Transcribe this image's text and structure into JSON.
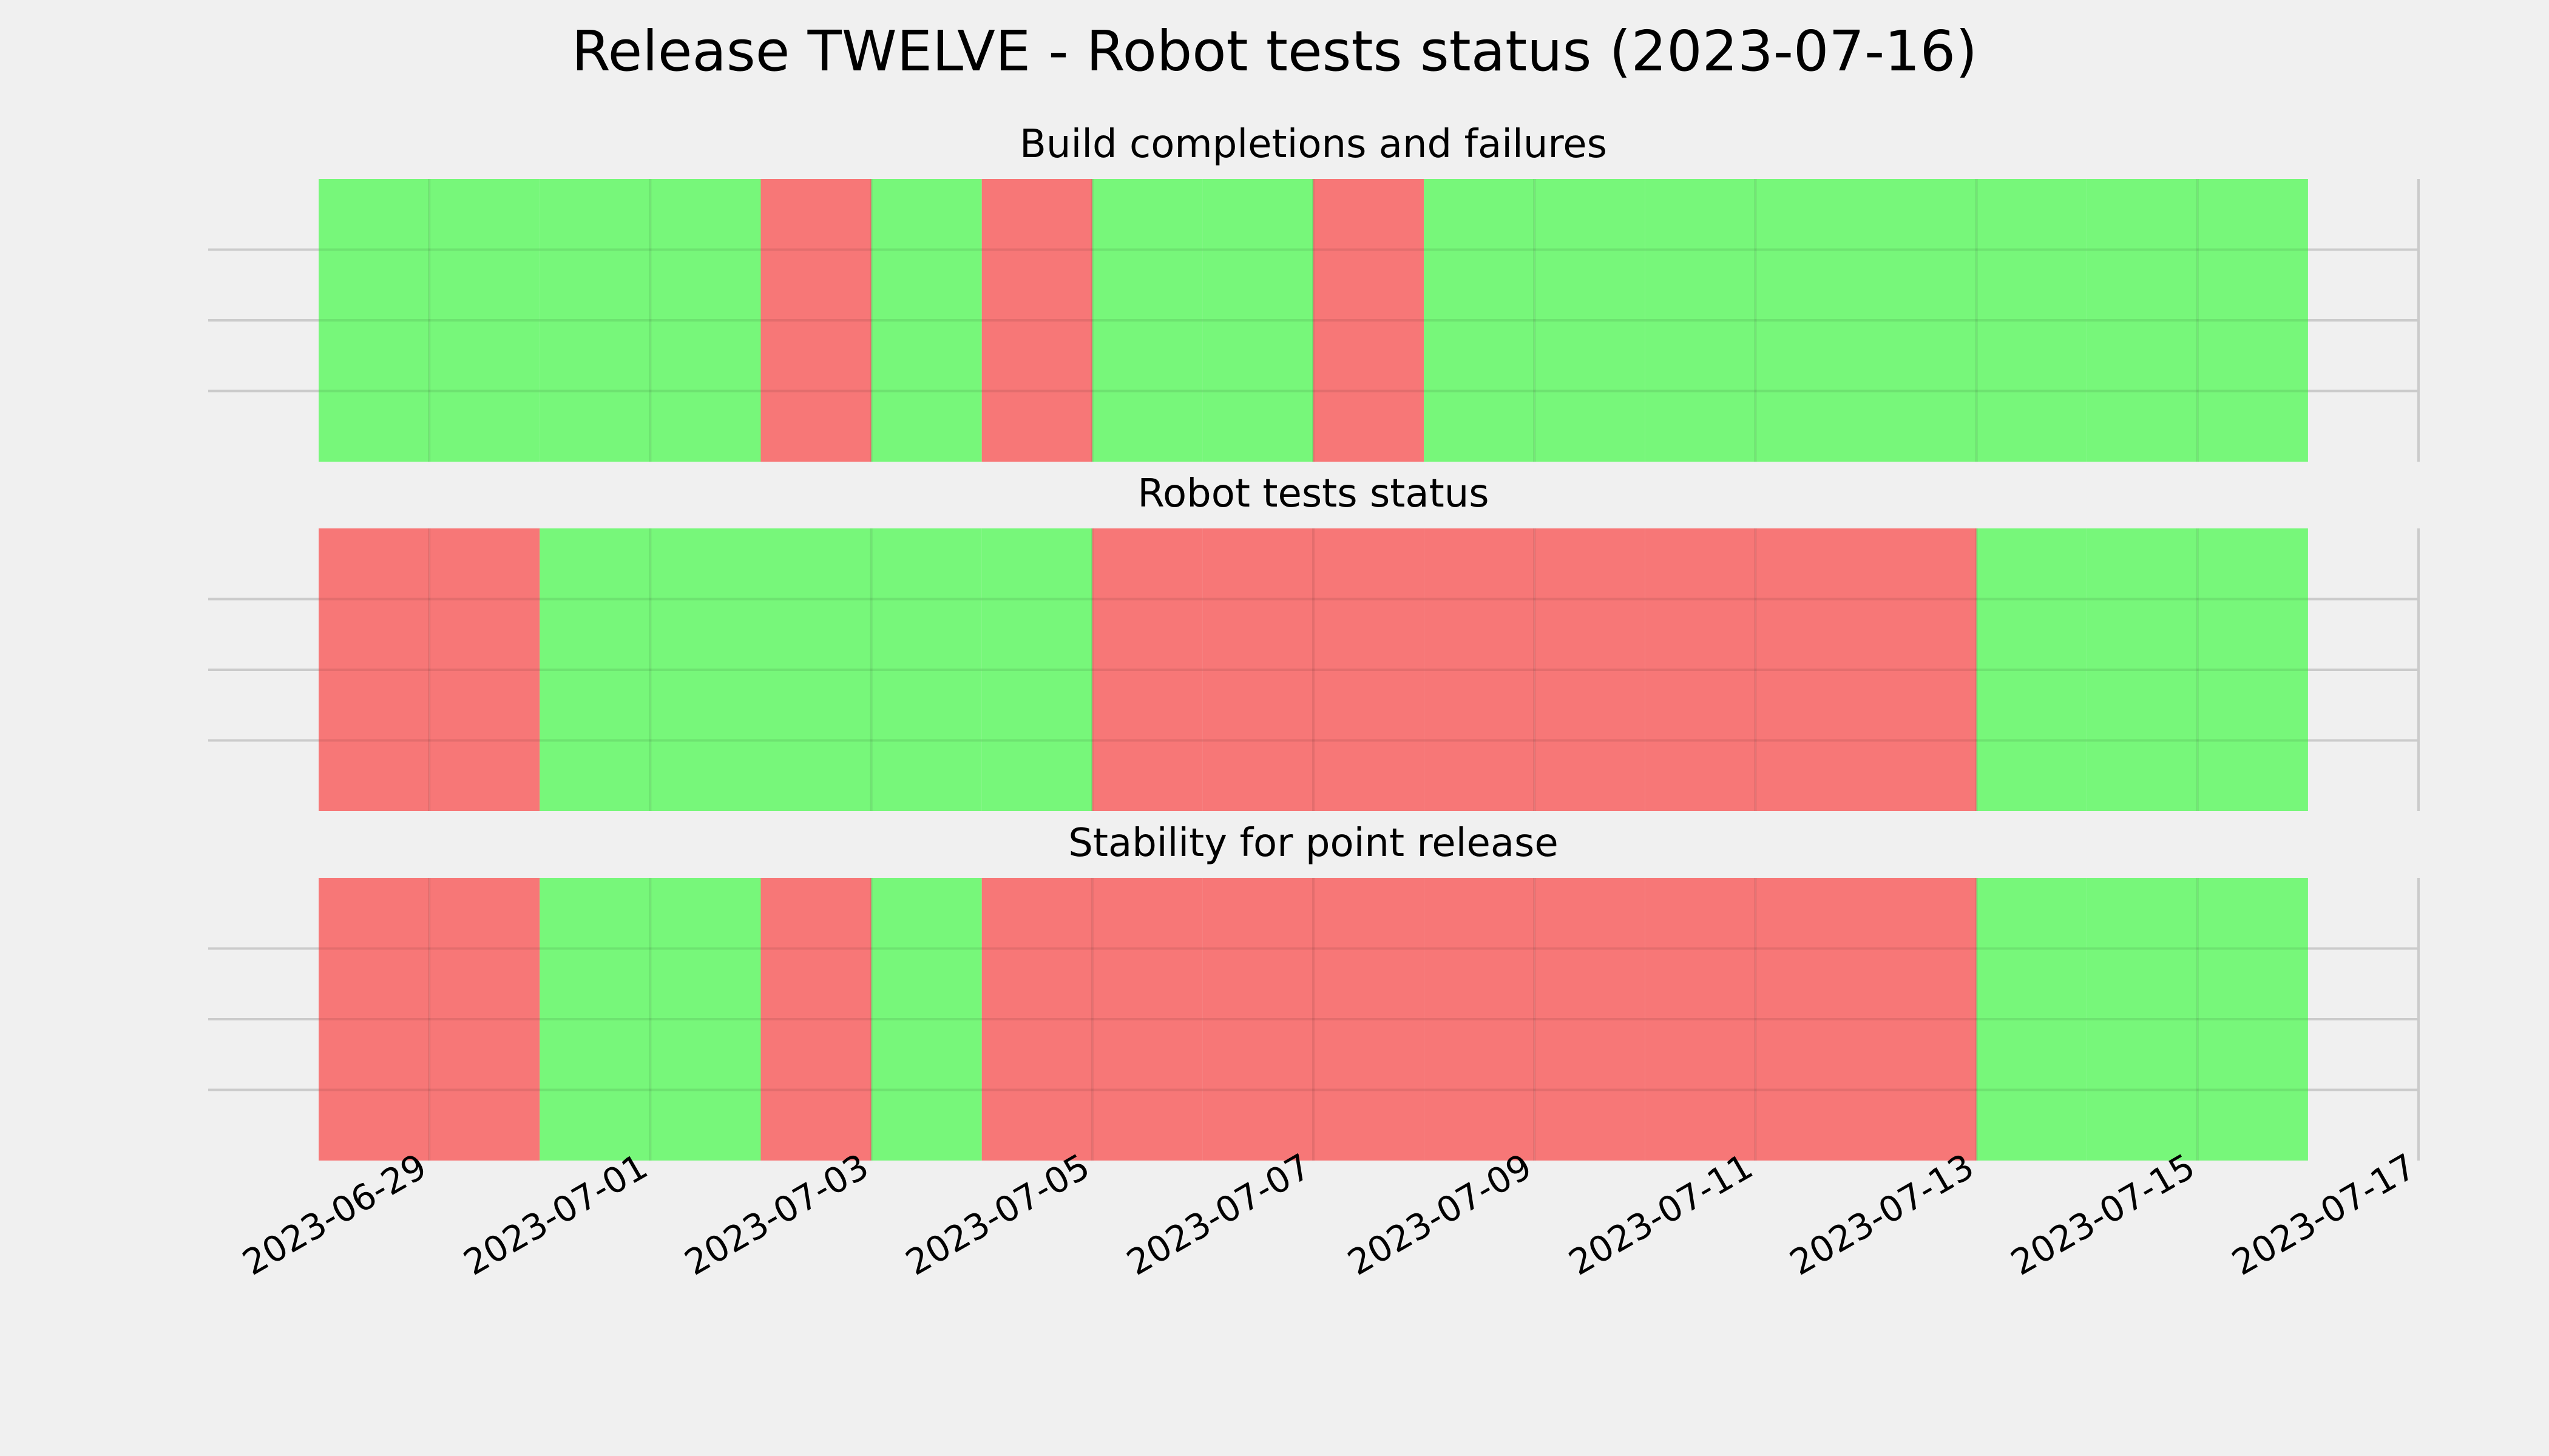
{
  "chart_data": {
    "type": "timeline",
    "title": "Release TWELVE - Robot tests status (2023-07-16)",
    "x_start": "2023-06-28",
    "x_end": "2023-07-16",
    "xlim": [
      "2023-06-27",
      "2023-07-17"
    ],
    "xticks": [
      "2023-06-29",
      "2023-07-01",
      "2023-07-03",
      "2023-07-05",
      "2023-07-07",
      "2023-07-09",
      "2023-07-11",
      "2023-07-13",
      "2023-07-15",
      "2023-07-17"
    ],
    "grid": true,
    "status_colors": {
      "pass": "#77f77a",
      "fail": "#f77777"
    },
    "panels": [
      {
        "title": "Build completions and failures",
        "days": [
          {
            "date": "2023-06-28",
            "status": "pass"
          },
          {
            "date": "2023-06-29",
            "status": "pass"
          },
          {
            "date": "2023-06-30",
            "status": "pass"
          },
          {
            "date": "2023-07-01",
            "status": "pass"
          },
          {
            "date": "2023-07-02",
            "status": "fail"
          },
          {
            "date": "2023-07-03",
            "status": "pass"
          },
          {
            "date": "2023-07-04",
            "status": "fail"
          },
          {
            "date": "2023-07-05",
            "status": "pass"
          },
          {
            "date": "2023-07-06",
            "status": "pass"
          },
          {
            "date": "2023-07-07",
            "status": "fail"
          },
          {
            "date": "2023-07-08",
            "status": "pass"
          },
          {
            "date": "2023-07-09",
            "status": "pass"
          },
          {
            "date": "2023-07-10",
            "status": "pass"
          },
          {
            "date": "2023-07-11",
            "status": "pass"
          },
          {
            "date": "2023-07-12",
            "status": "pass"
          },
          {
            "date": "2023-07-13",
            "status": "pass"
          },
          {
            "date": "2023-07-14",
            "status": "pass"
          },
          {
            "date": "2023-07-15",
            "status": "pass"
          }
        ]
      },
      {
        "title": "Robot tests status",
        "days": [
          {
            "date": "2023-06-28",
            "status": "fail"
          },
          {
            "date": "2023-06-29",
            "status": "fail"
          },
          {
            "date": "2023-06-30",
            "status": "pass"
          },
          {
            "date": "2023-07-01",
            "status": "pass"
          },
          {
            "date": "2023-07-02",
            "status": "pass"
          },
          {
            "date": "2023-07-03",
            "status": "pass"
          },
          {
            "date": "2023-07-04",
            "status": "pass"
          },
          {
            "date": "2023-07-05",
            "status": "fail"
          },
          {
            "date": "2023-07-06",
            "status": "fail"
          },
          {
            "date": "2023-07-07",
            "status": "fail"
          },
          {
            "date": "2023-07-08",
            "status": "fail"
          },
          {
            "date": "2023-07-09",
            "status": "fail"
          },
          {
            "date": "2023-07-10",
            "status": "fail"
          },
          {
            "date": "2023-07-11",
            "status": "fail"
          },
          {
            "date": "2023-07-12",
            "status": "fail"
          },
          {
            "date": "2023-07-13",
            "status": "pass"
          },
          {
            "date": "2023-07-14",
            "status": "pass"
          },
          {
            "date": "2023-07-15",
            "status": "pass"
          }
        ]
      },
      {
        "title": "Stability for point release",
        "days": [
          {
            "date": "2023-06-28",
            "status": "fail"
          },
          {
            "date": "2023-06-29",
            "status": "fail"
          },
          {
            "date": "2023-06-30",
            "status": "pass"
          },
          {
            "date": "2023-07-01",
            "status": "pass"
          },
          {
            "date": "2023-07-02",
            "status": "fail"
          },
          {
            "date": "2023-07-03",
            "status": "pass"
          },
          {
            "date": "2023-07-04",
            "status": "fail"
          },
          {
            "date": "2023-07-05",
            "status": "fail"
          },
          {
            "date": "2023-07-06",
            "status": "fail"
          },
          {
            "date": "2023-07-07",
            "status": "fail"
          },
          {
            "date": "2023-07-08",
            "status": "fail"
          },
          {
            "date": "2023-07-09",
            "status": "fail"
          },
          {
            "date": "2023-07-10",
            "status": "fail"
          },
          {
            "date": "2023-07-11",
            "status": "fail"
          },
          {
            "date": "2023-07-12",
            "status": "fail"
          },
          {
            "date": "2023-07-13",
            "status": "pass"
          },
          {
            "date": "2023-07-14",
            "status": "pass"
          },
          {
            "date": "2023-07-15",
            "status": "pass"
          }
        ]
      }
    ]
  }
}
